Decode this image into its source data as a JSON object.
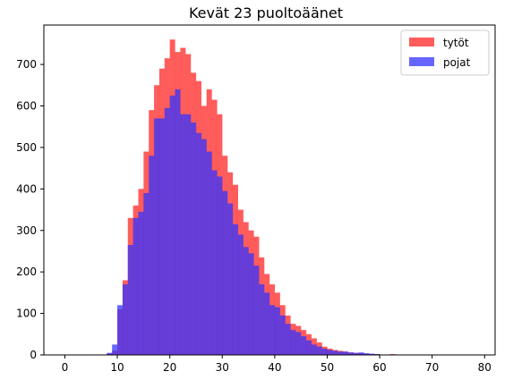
{
  "chart_data": {
    "type": "bar",
    "title": "Kevät 23 puoltoäänet",
    "xlabel": "",
    "ylabel": "",
    "xlim": [
      -4,
      82
    ],
    "ylim": [
      0,
      795
    ],
    "xticks": [
      0,
      10,
      20,
      30,
      40,
      50,
      60,
      70,
      80
    ],
    "yticks": [
      0,
      100,
      200,
      300,
      400,
      500,
      600,
      700
    ],
    "grid": false,
    "legend_position": "top-right",
    "bin_width": 1,
    "series": [
      {
        "name": "tytöt",
        "color": "#ff3333",
        "opacity": 0.8,
        "x": [
          8,
          9,
          10,
          11,
          12,
          13,
          14,
          15,
          16,
          17,
          18,
          19,
          20,
          21,
          22,
          23,
          24,
          25,
          26,
          27,
          28,
          29,
          30,
          31,
          32,
          33,
          34,
          35,
          36,
          37,
          38,
          39,
          40,
          41,
          42,
          43,
          44,
          45,
          46,
          47,
          48,
          49,
          50,
          51,
          52,
          53,
          54,
          55,
          56,
          57,
          58,
          59,
          60,
          61,
          62,
          63
        ],
        "values": [
          3,
          10,
          110,
          180,
          330,
          360,
          400,
          490,
          590,
          650,
          690,
          715,
          760,
          730,
          740,
          725,
          680,
          660,
          600,
          640,
          615,
          580,
          480,
          440,
          410,
          350,
          320,
          300,
          285,
          235,
          195,
          170,
          150,
          120,
          95,
          75,
          70,
          60,
          50,
          40,
          30,
          20,
          15,
          12,
          10,
          8,
          6,
          5,
          4,
          3,
          2,
          2,
          1,
          1,
          2,
          1
        ]
      },
      {
        "name": "pojat",
        "color": "#3333ff",
        "opacity": 0.75,
        "x": [
          8,
          9,
          10,
          11,
          12,
          13,
          14,
          15,
          16,
          17,
          18,
          19,
          20,
          21,
          22,
          23,
          24,
          25,
          26,
          27,
          28,
          29,
          30,
          31,
          32,
          33,
          34,
          35,
          36,
          37,
          38,
          39,
          40,
          41,
          42,
          43,
          44,
          45,
          46,
          47,
          48,
          49,
          50,
          51,
          52,
          53,
          54,
          55,
          56,
          57,
          58,
          59,
          60
        ],
        "values": [
          5,
          25,
          120,
          170,
          265,
          330,
          345,
          390,
          480,
          570,
          570,
          595,
          625,
          640,
          580,
          580,
          560,
          535,
          520,
          490,
          445,
          430,
          395,
          365,
          315,
          290,
          260,
          245,
          215,
          170,
          150,
          120,
          115,
          95,
          75,
          60,
          55,
          45,
          35,
          25,
          20,
          15,
          12,
          10,
          8,
          8,
          6,
          5,
          6,
          4,
          3,
          2,
          1
        ]
      }
    ]
  }
}
